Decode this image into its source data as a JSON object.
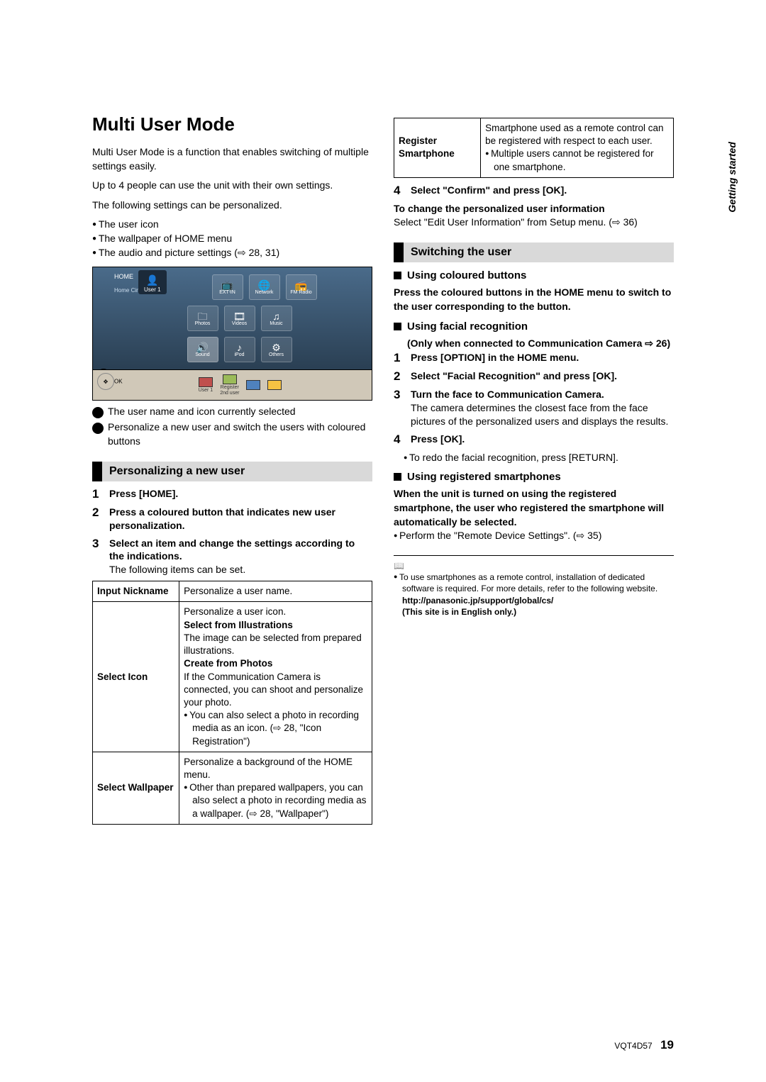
{
  "title": "Multi User Mode",
  "side_title": "Getting started",
  "intro": {
    "p1": "Multi User Mode is a function that enables switching of multiple settings easily.",
    "p2": "Up to 4 people can use the unit with their own settings.",
    "p3": "The following settings can be personalized.",
    "bullets": [
      "The user icon",
      "The wallpaper of HOME menu",
      "The audio and picture settings (⇨ 28, 31)"
    ]
  },
  "diagram": {
    "home": "HOME",
    "home_sub": "Home Cinema",
    "user_tab": "User 1",
    "row1": [
      "EXT-IN",
      "Network",
      "FM Radio"
    ],
    "row2": [
      "Photos",
      "Videos",
      "Music"
    ],
    "row3": [
      "Sound",
      "iPod",
      "Others"
    ],
    "bottom_user": "User 1",
    "bottom_reg1": "Register",
    "bottom_reg2": "2nd user",
    "ok": "OK"
  },
  "diagram_desc": {
    "a": "The user name and icon currently selected",
    "b": "Personalize a new user and switch the users with coloured buttons"
  },
  "personalizing": {
    "heading": "Personalizing a new user",
    "steps": [
      {
        "n": "1",
        "bold": "Press [HOME]."
      },
      {
        "n": "2",
        "bold": "Press a coloured button that indicates new user personalization."
      },
      {
        "n": "3",
        "bold": "Select an item and change the settings according to the indications.",
        "plain": "The following items can be set."
      }
    ],
    "table": [
      {
        "k": "Input Nickname",
        "v": "Personalize a user name."
      },
      {
        "k": "Select Icon",
        "v_lines": [
          "Personalize a user icon.",
          "<b>Select from Illustrations</b>",
          "The image can be selected from prepared illustrations.",
          "<b>Create from Photos</b>",
          "If the Communication Camera is connected, you can shoot and personalize your photo.",
          "<sb>You can also select a photo in recording media as an icon. (⇨ 28, \"Icon Registration\")</sb>"
        ]
      },
      {
        "k": "Select Wallpaper",
        "v_lines": [
          "Personalize a background of the HOME menu.",
          "<sb>Other than prepared wallpapers, you can also select a photo in recording media as a wallpaper. (⇨ 28, \"Wallpaper\")</sb>"
        ]
      }
    ]
  },
  "right_col": {
    "reg_table": {
      "k": "Register Smartphone",
      "line1": "Smartphone used as a remote control can be registered with respect to each user.",
      "bullet": "Multiple users cannot be registered for one smartphone."
    },
    "step4": {
      "n": "4",
      "bold": "Select \"Confirm\" and press [OK]."
    },
    "change_bold": "To change the personalized user information",
    "change_text": "Select \"Edit User Information\" from Setup menu. (⇨ 36)",
    "switching_heading": "Switching the user",
    "using_coloured": "Using coloured buttons",
    "coloured_text": "Press the coloured buttons in the HOME menu to switch to the user corresponding to the button.",
    "using_facial": "Using facial recognition",
    "facial_sub": "Only when connected to Communication Camera ⇨ 26)",
    "facial_steps": [
      {
        "n": "1",
        "bold": "Press [OPTION] in the HOME menu."
      },
      {
        "n": "2",
        "bold": "Select \"Facial Recognition\" and press [OK]."
      },
      {
        "n": "3",
        "bold": "Turn the face to Communication Camera.",
        "plain": "The camera determines the closest face from the face pictures of the personalized users and displays the results."
      },
      {
        "n": "4",
        "bold": "Press [OK].",
        "bullet": "To redo the facial recognition, press [RETURN]."
      }
    ],
    "using_smartphones": "Using registered smartphones",
    "smart_bold": "When the unit is turned on using the registered smartphone, the user who registered the smartphone will automatically be selected.",
    "smart_bullet": "Perform the \"Remote Device Settings\". (⇨ 35)",
    "footnote": {
      "line1": "To use smartphones as a remote control, installation of dedicated software is required. For more details, refer to the following website.",
      "url": "http://panasonic.jp/support/global/cs/",
      "line2": "(This site is in English only.)"
    }
  },
  "footer": {
    "code": "VQT4D57",
    "page": "19"
  }
}
